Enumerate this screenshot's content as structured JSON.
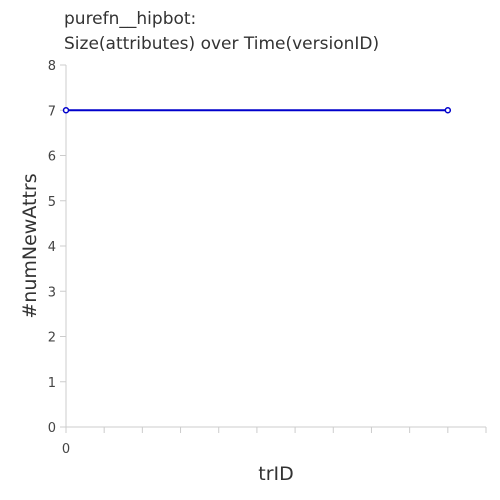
{
  "chart_data": {
    "type": "line",
    "title_lines": [
      "purefn__hipbot:",
      "Size(attributes) over Time(versionID)"
    ],
    "xlabel": "trID",
    "ylabel": "#numNewAttrs",
    "xlim": [
      0,
      11
    ],
    "ylim": [
      0,
      8
    ],
    "x_tick_labels": [
      {
        "x": 0,
        "label": "0"
      }
    ],
    "x_minor_ticks": [
      0,
      1,
      2,
      3,
      4,
      5,
      6,
      7,
      8,
      9,
      10,
      11
    ],
    "y_ticks": [
      0,
      1,
      2,
      3,
      4,
      5,
      6,
      7,
      8
    ],
    "series": [
      {
        "color": "#0000cc",
        "x": [
          0,
          10
        ],
        "y": [
          7,
          7
        ]
      }
    ],
    "grid": false
  }
}
